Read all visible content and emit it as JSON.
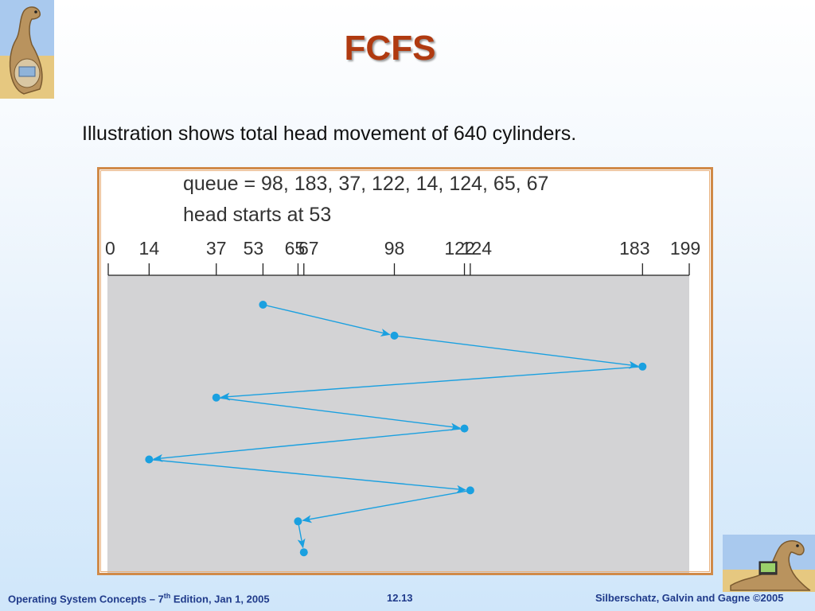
{
  "slide": {
    "title": "FCFS",
    "subtitle": "Illustration shows total head movement of 640 cylinders."
  },
  "diagram": {
    "queue_line": "queue = 98, 183, 37, 122, 14, 124, 65, 67",
    "head_line": "head starts at 53",
    "queue": [
      98,
      183,
      37,
      122,
      14,
      124,
      65,
      67
    ],
    "head_start": 53,
    "axis_ticks": [
      0,
      14,
      37,
      53,
      65,
      67,
      98,
      122,
      124,
      183,
      199
    ],
    "axis_labels": [
      "0",
      "14",
      "37",
      "53",
      "65",
      "67",
      "98",
      "122",
      "124",
      "183",
      "199"
    ],
    "visit_order": [
      53,
      98,
      183,
      37,
      122,
      14,
      124,
      65,
      67
    ],
    "axis_range": [
      0,
      199
    ],
    "colors": {
      "path": "#1aa0e0",
      "panel": "#d3d3d5",
      "title": "#b03a10",
      "frame": "#d08a48",
      "footer": "#1f3a8a"
    }
  },
  "footer": {
    "left_pre": "Operating System Concepts – 7",
    "left_sup": "th",
    "left_post": " Edition, Jan 1, 2005",
    "center": "12.13",
    "right": "Silberschatz, Galvin and Gagne ©2005"
  }
}
